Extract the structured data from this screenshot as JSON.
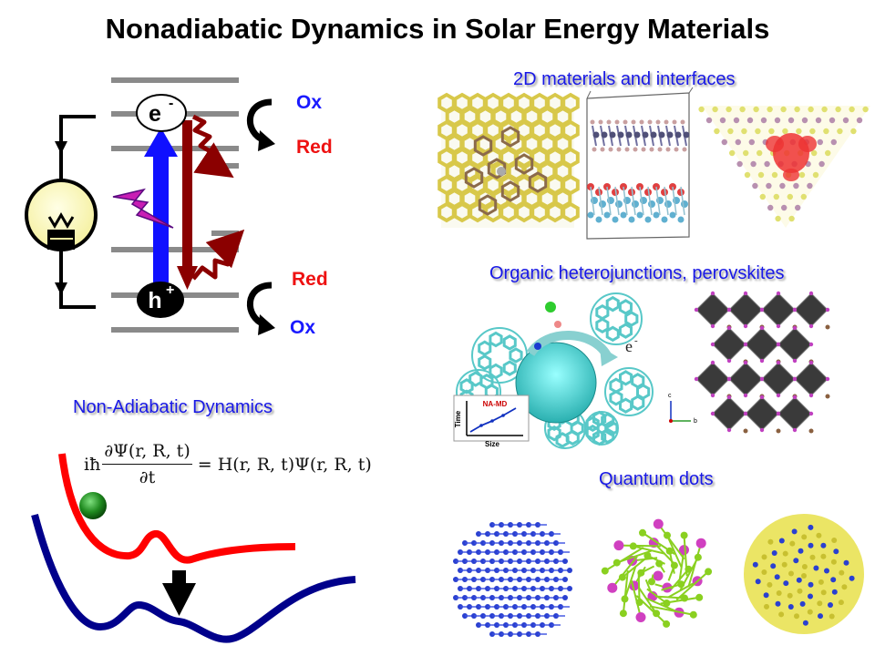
{
  "title": "Nonadiabatic Dynamics in Solar Energy Materials",
  "energy_diagram": {
    "electron_label": "e",
    "electron_sup": "-",
    "hole_label": "h",
    "hole_sup": "+",
    "upper_ox": "Ox",
    "upper_red": "Red",
    "lower_red": "Red",
    "lower_ox": "Ox"
  },
  "sections": {
    "materials_2d": "2D materials and interfaces",
    "organic": "Organic heterojunctions, perovskites",
    "qdots": "Quantum dots",
    "nad": "Non-Adiabatic Dynamics"
  },
  "equation": {
    "prefix": "iħ",
    "numerator": "∂Ψ(r, R, t)",
    "denominator": "∂t",
    "rhs": "= H(r, R, t)Ψ(r, R, t)"
  },
  "inset": {
    "title": "NA-MD",
    "xlabel": "Size",
    "ylabel": "Time",
    "electron": "e",
    "electron_sup": "-"
  },
  "axes_small": {
    "c": "c",
    "b": "b"
  },
  "colors": {
    "blue_text": "#1a1aff",
    "red_text": "#ee1111",
    "section_text": "#1818e6",
    "arrow_blue": "#1010ff",
    "arrow_darkred": "#8b0000",
    "curve_red": "#ff0000",
    "curve_navy": "#00008b",
    "ball_green": "#1f8a1f"
  }
}
